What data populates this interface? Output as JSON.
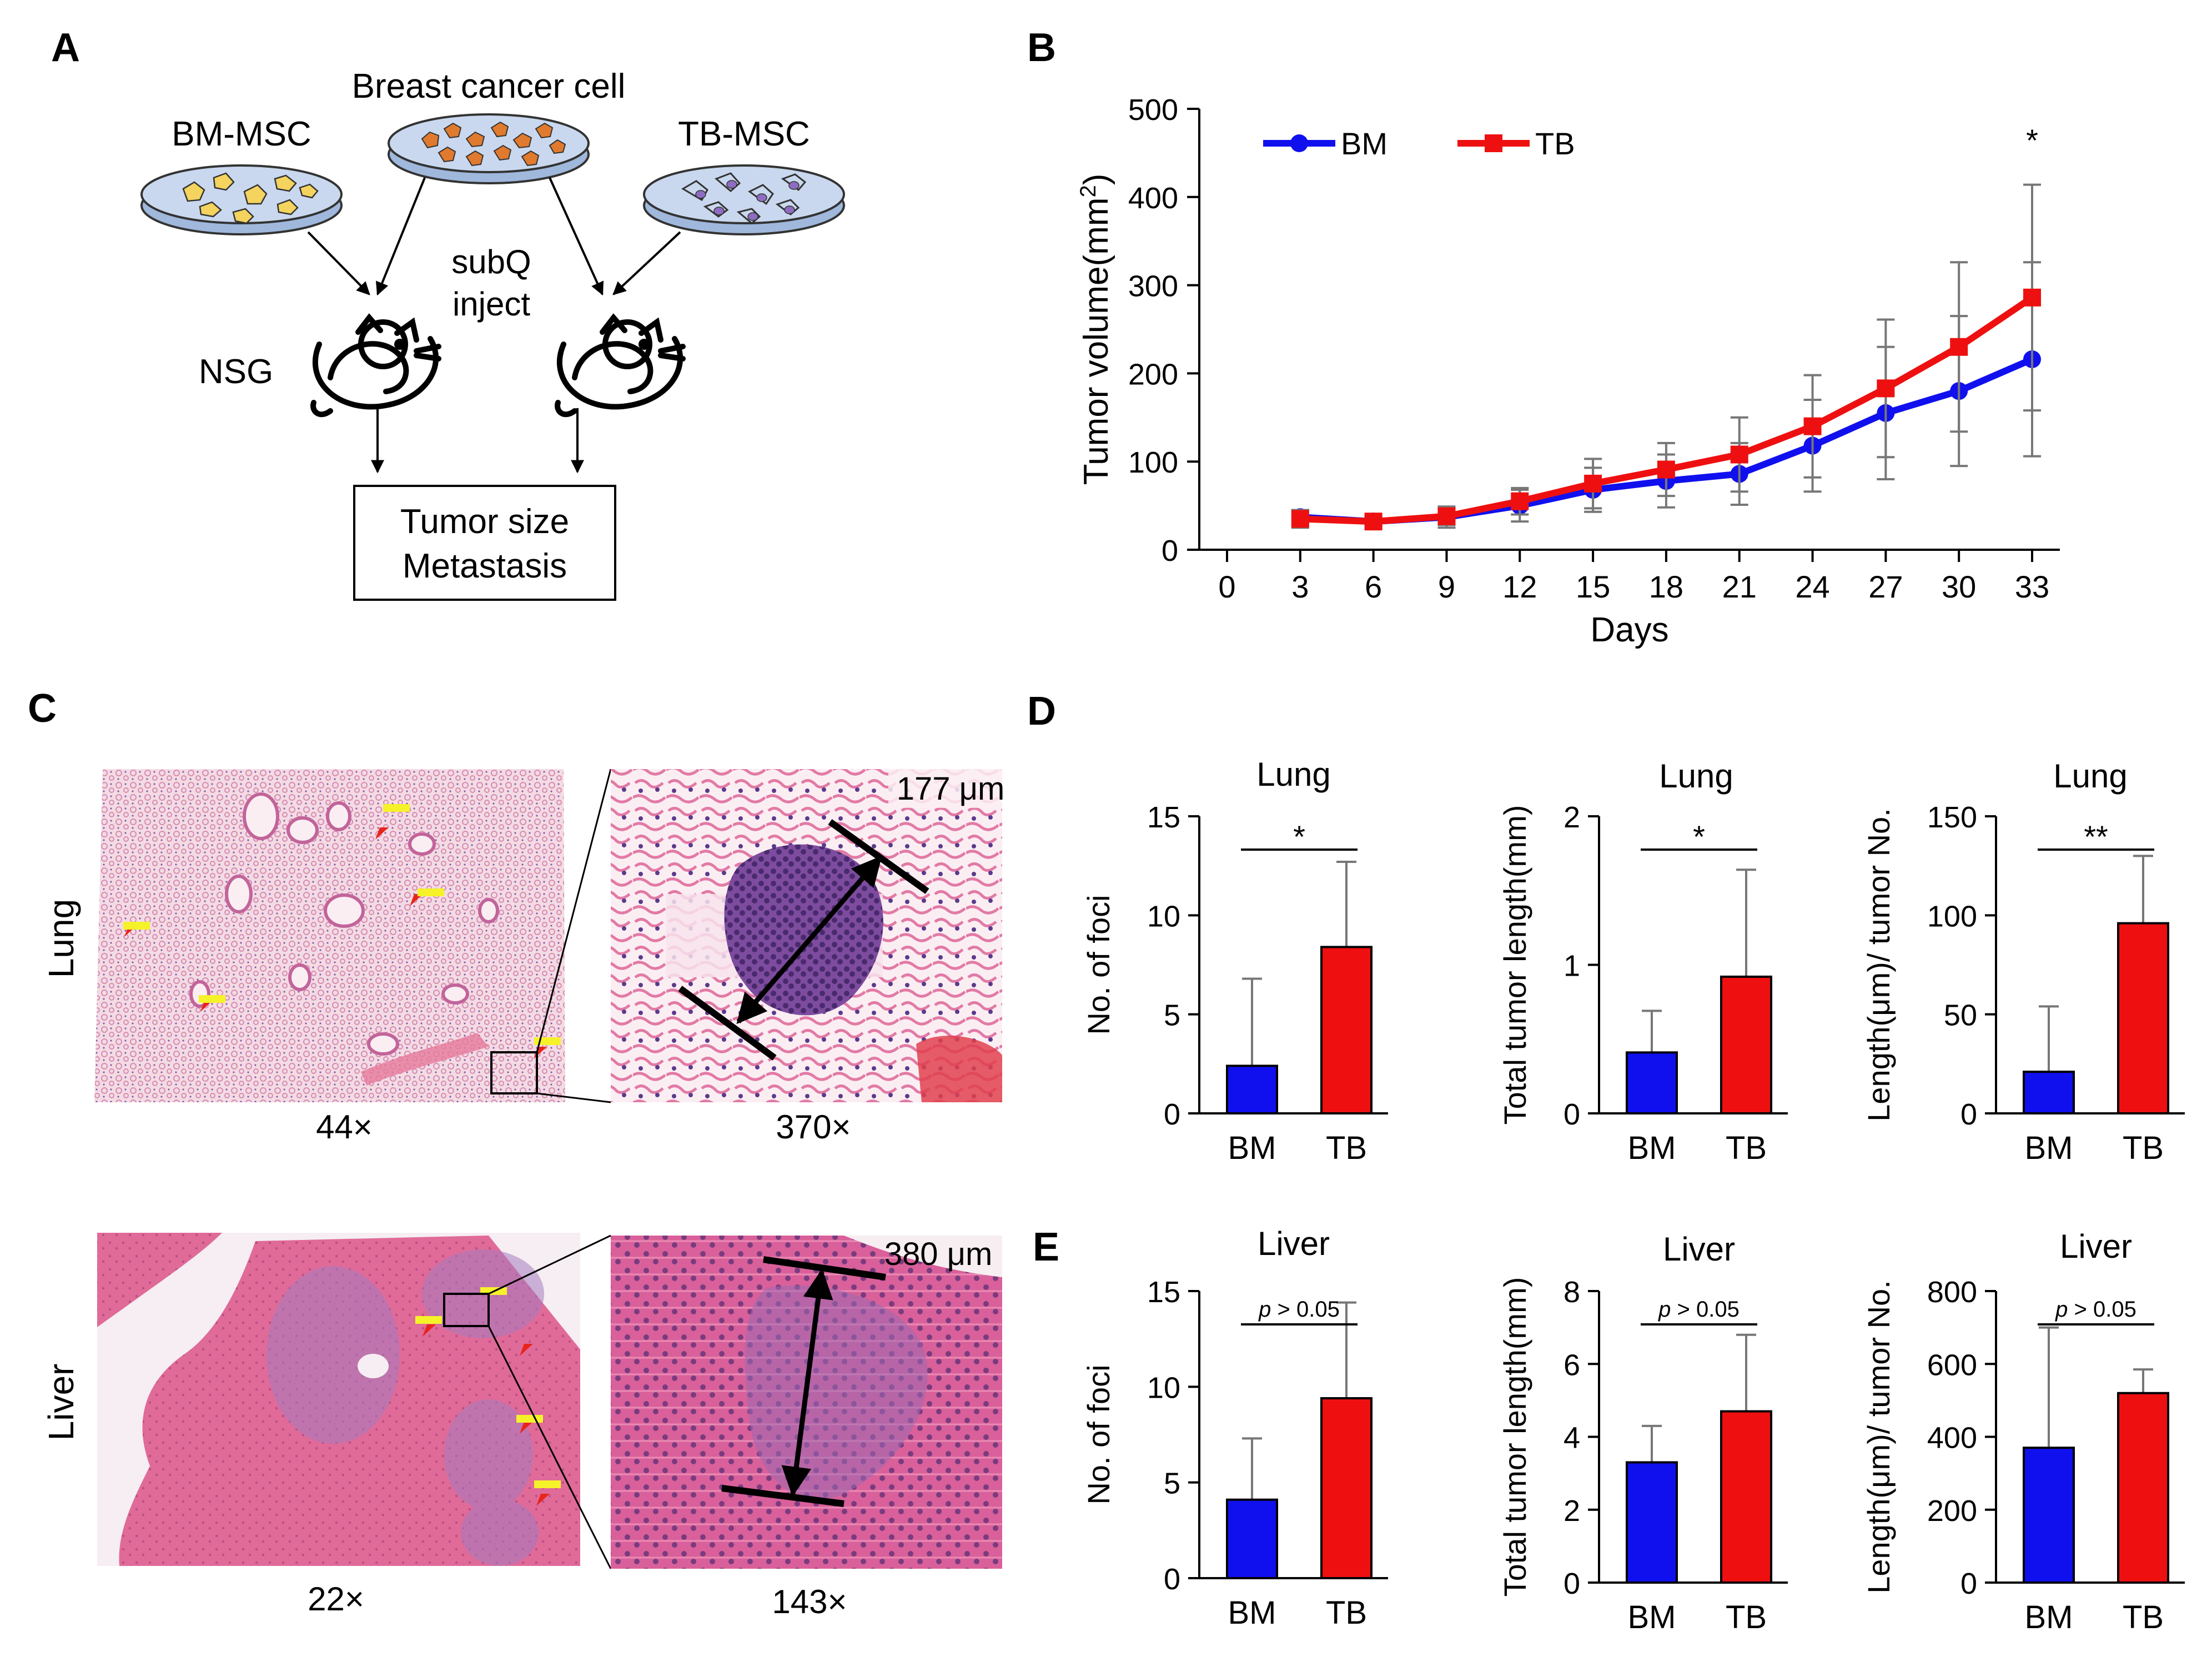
{
  "panel_labels": {
    "a": "A",
    "b": "B",
    "c": "C",
    "d": "D",
    "e": "E"
  },
  "schematic": {
    "breast_cancer_cell": "Breast cancer cell",
    "bm_msc": "BM-MSC",
    "tb_msc": "TB-MSC",
    "subq": "subQ",
    "inject": "inject",
    "nsg": "NSG",
    "outcome_line1": "Tumor size",
    "outcome_line2": "Metastasis",
    "colors": {
      "bm_cells": "#f4d35e",
      "tumor_cells": "#e07a2e",
      "tb_cells": "#8e6cc1",
      "dish": "#c9d8ee"
    }
  },
  "histology": {
    "lung_label": "Lung",
    "liver_label": "Liver",
    "lung_low_mag": "44×",
    "lung_high_mag": "370×",
    "lung_measure": "177 μm",
    "liver_low_mag": "22×",
    "liver_high_mag": "143×",
    "liver_measure": "380 μm",
    "colors": {
      "lung_bg": "#f3dbe4",
      "lung_tissue": "#e9b2c6",
      "tumor": "#6a3b8a",
      "liver": "#e06a98",
      "liver_dark": "#b07ab8",
      "marker": "#e8241c",
      "tag": "#f5f22a"
    }
  },
  "chart_data": [
    {
      "id": "B",
      "type": "line",
      "xlabel": "Days",
      "ylabel": "Tumor volume(mm",
      "ylabel_sup": "2",
      "ylabel_close": ")",
      "x": [
        0,
        3,
        6,
        9,
        12,
        15,
        18,
        21,
        24,
        27,
        30,
        33
      ],
      "xticks": [
        "0",
        "3",
        "6",
        "9",
        "12",
        "15",
        "18",
        "21",
        "24",
        "27",
        "30",
        "33"
      ],
      "ylim": [
        0,
        500
      ],
      "yticks": [
        "0",
        "100",
        "200",
        "300",
        "400",
        "500"
      ],
      "legend_loc": "top-left",
      "annotation": "*",
      "series": [
        {
          "name": "BM",
          "color": "#1010ee",
          "marker": "circle",
          "x": [
            3,
            6,
            9,
            12,
            15,
            18,
            21,
            24,
            27,
            30,
            33
          ],
          "values": [
            37,
            32,
            37,
            50,
            68,
            78,
            86,
            118,
            155,
            180,
            216
          ],
          "err": [
            8,
            5,
            12,
            18,
            25,
            30,
            35,
            52,
            75,
            85,
            110
          ]
        },
        {
          "name": "TB",
          "color": "#ee1010",
          "marker": "square",
          "x": [
            3,
            6,
            9,
            12,
            15,
            18,
            21,
            24,
            27,
            30,
            33
          ],
          "values": [
            35,
            32,
            38,
            55,
            75,
            91,
            108,
            140,
            183,
            230,
            286
          ],
          "err": [
            10,
            6,
            10,
            15,
            28,
            30,
            42,
            58,
            78,
            96,
            128
          ]
        }
      ]
    },
    {
      "id": "D1",
      "type": "bar",
      "title": "Lung",
      "ylabel": "No. of foci",
      "categories": [
        "BM",
        "TB"
      ],
      "values": [
        2.4,
        8.4
      ],
      "err": [
        4.4,
        4.3
      ],
      "ylim": [
        0,
        15
      ],
      "yticks": [
        "0",
        "5",
        "10",
        "15"
      ],
      "sig": "*",
      "colors": [
        "#1010ee",
        "#ee1010"
      ]
    },
    {
      "id": "D2",
      "type": "bar",
      "title": "Lung",
      "ylabel": "Total tumor length(mm)",
      "categories": [
        "BM",
        "TB"
      ],
      "values": [
        0.41,
        0.92
      ],
      "err": [
        0.28,
        0.72
      ],
      "ylim": [
        0,
        2
      ],
      "yticks": [
        "0",
        "1",
        "2"
      ],
      "sig": "*",
      "colors": [
        "#1010ee",
        "#ee1010"
      ]
    },
    {
      "id": "D3",
      "type": "bar",
      "title": "Lung",
      "ylabel": "Length(μm)/ tumor No.",
      "categories": [
        "BM",
        "TB"
      ],
      "values": [
        21,
        96
      ],
      "err": [
        33,
        34
      ],
      "ylim": [
        0,
        150
      ],
      "yticks": [
        "0",
        "50",
        "100",
        "150"
      ],
      "sig": "**",
      "colors": [
        "#1010ee",
        "#ee1010"
      ]
    },
    {
      "id": "E1",
      "type": "bar",
      "title": "Liver",
      "ylabel": "No. of foci",
      "categories": [
        "BM",
        "TB"
      ],
      "values": [
        4.1,
        9.4
      ],
      "err": [
        3.2,
        5.0
      ],
      "ylim": [
        0,
        15
      ],
      "yticks": [
        "0",
        "5",
        "10",
        "15"
      ],
      "sig": "p > 0.05",
      "colors": [
        "#1010ee",
        "#ee1010"
      ]
    },
    {
      "id": "E2",
      "type": "bar",
      "title": "Liver",
      "ylabel": "Total tumor length(mm)",
      "categories": [
        "BM",
        "TB"
      ],
      "values": [
        3.3,
        4.7
      ],
      "err": [
        1.0,
        2.1
      ],
      "ylim": [
        0,
        8
      ],
      "yticks": [
        "0",
        "2",
        "4",
        "6",
        "8"
      ],
      "sig": "p > 0.05",
      "colors": [
        "#1010ee",
        "#ee1010"
      ]
    },
    {
      "id": "E3",
      "type": "bar",
      "title": "Liver",
      "ylabel": "Length(μm)/ tumor No.",
      "categories": [
        "BM",
        "TB"
      ],
      "values": [
        370,
        520
      ],
      "err": [
        330,
        65
      ],
      "ylim": [
        0,
        800
      ],
      "yticks": [
        "0",
        "200",
        "400",
        "600",
        "800"
      ],
      "sig": "p > 0.05",
      "colors": [
        "#1010ee",
        "#ee1010"
      ]
    }
  ]
}
